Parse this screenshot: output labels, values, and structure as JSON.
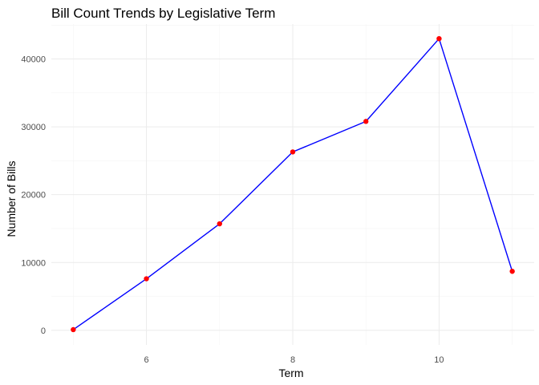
{
  "chart_data": {
    "type": "line",
    "title": "Bill Count Trends by Legislative Term",
    "xlabel": "Term",
    "ylabel": "Number of Bills",
    "x": [
      5,
      6,
      7,
      8,
      9,
      10,
      11
    ],
    "series": [
      {
        "values": [
          100,
          7600,
          15700,
          26300,
          30800,
          43000,
          8700
        ]
      }
    ],
    "x_ticks": [
      6,
      8,
      10
    ],
    "y_ticks": [
      0,
      10000,
      20000,
      30000,
      40000
    ],
    "xlim": [
      4.7,
      11.3
    ],
    "ylim": [
      -2150,
      45150
    ],
    "line_color": "#0000ff",
    "point_color": "#ff0000",
    "grid": true,
    "legend": "none"
  }
}
